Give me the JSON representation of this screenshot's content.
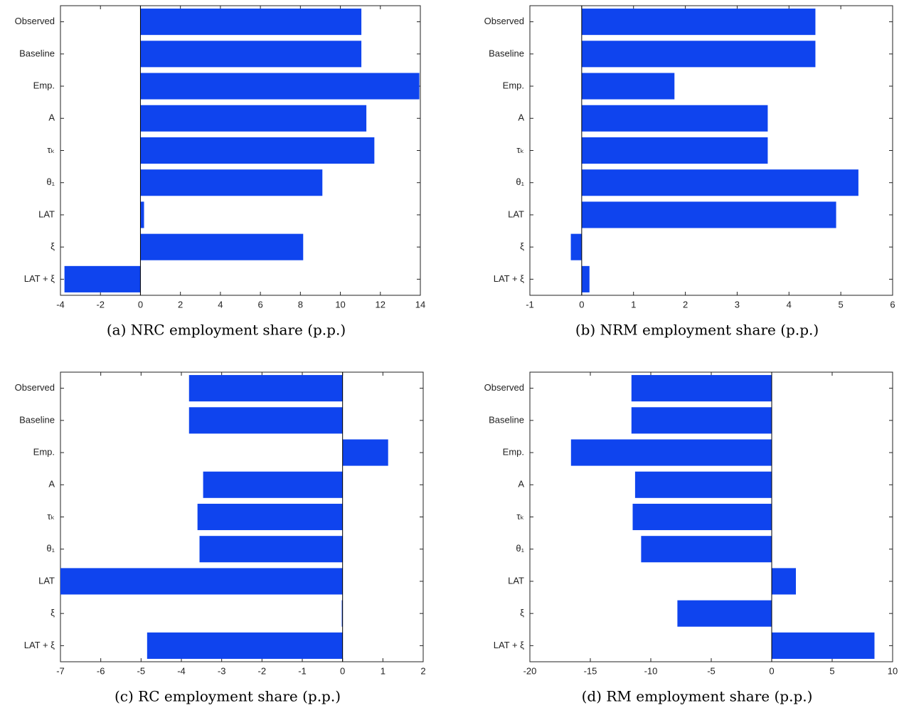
{
  "chart_data": [
    {
      "type": "bar",
      "orientation": "horizontal",
      "title": "(a) NRC employment share (p.p.)",
      "color": "#0f44ee",
      "categories": [
        "Observed",
        "Baseline",
        "Emp.",
        "A",
        "τₖ",
        "θ₁",
        "LAT",
        "ξ",
        "LAT + ξ"
      ],
      "values": [
        11.05,
        11.05,
        13.95,
        11.3,
        11.7,
        9.1,
        0.18,
        8.14,
        -3.8
      ],
      "xlim": [
        -4,
        14
      ],
      "xticks": [
        -4,
        -2,
        0,
        2,
        4,
        6,
        8,
        10,
        12,
        14
      ]
    },
    {
      "type": "bar",
      "orientation": "horizontal",
      "title": "(b) NRM employment share (p.p.)",
      "color": "#0f44ee",
      "categories": [
        "Observed",
        "Baseline",
        "Emp.",
        "A",
        "τₖ",
        "θ₁",
        "LAT",
        "ξ",
        "LAT + ξ"
      ],
      "values": [
        4.51,
        4.51,
        1.79,
        3.59,
        3.59,
        5.34,
        4.91,
        -0.21,
        0.15
      ],
      "xlim": [
        -1,
        6
      ],
      "xticks": [
        -1,
        0,
        1,
        2,
        3,
        4,
        5,
        6
      ]
    },
    {
      "type": "bar",
      "orientation": "horizontal",
      "title": "(c) RC employment share (p.p.)",
      "color": "#0f44ee",
      "categories": [
        "Observed",
        "Baseline",
        "Emp.",
        "A",
        "τₖ",
        "θ₁",
        "LAT",
        "ξ",
        "LAT + ξ"
      ],
      "values": [
        -3.81,
        -3.81,
        1.13,
        -3.46,
        -3.6,
        -3.55,
        -7.0,
        -0.02,
        -4.85
      ],
      "xlim": [
        -7,
        2
      ],
      "xticks": [
        -7,
        -6,
        -5,
        -4,
        -3,
        -2,
        -1,
        0,
        1,
        2
      ]
    },
    {
      "type": "bar",
      "orientation": "horizontal",
      "title": "(d) RM employment share (p.p.)",
      "color": "#0f44ee",
      "categories": [
        "Observed",
        "Baseline",
        "Emp.",
        "A",
        "τₖ",
        "θ₁",
        "LAT",
        "ξ",
        "LAT + ξ"
      ],
      "values": [
        -11.6,
        -11.6,
        -16.6,
        -11.3,
        -11.5,
        -10.8,
        2.0,
        -7.8,
        8.5
      ],
      "xlim": [
        -20,
        10
      ],
      "xticks": [
        -20,
        -15,
        -10,
        -5,
        0,
        5,
        10
      ]
    }
  ]
}
